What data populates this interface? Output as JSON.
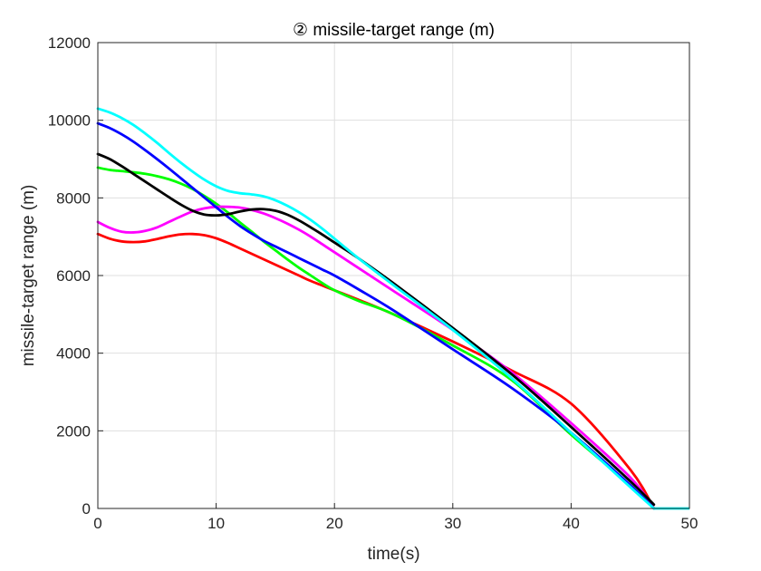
{
  "chart_data": {
    "type": "line",
    "title": "② missile-target range (m)",
    "xlabel": "time(s)",
    "ylabel": "missile-target range (m)",
    "xlim": [
      0,
      50
    ],
    "ylim": [
      0,
      12000
    ],
    "xticks": [
      0,
      10,
      20,
      30,
      40,
      50
    ],
    "yticks": [
      0,
      2000,
      4000,
      6000,
      8000,
      10000,
      12000
    ],
    "grid": true,
    "series": [
      {
        "name": "red",
        "color": "#ff0000",
        "x": [
          0,
          1,
          2,
          3,
          4,
          5,
          6,
          7,
          8,
          9,
          10,
          11,
          12,
          13,
          14,
          15,
          16,
          17,
          18,
          20,
          22,
          25,
          30,
          35,
          40,
          45,
          47
        ],
        "y": [
          7070,
          6950,
          6880,
          6860,
          6880,
          6940,
          7010,
          7060,
          7070,
          7040,
          6960,
          6840,
          6700,
          6560,
          6420,
          6280,
          6140,
          6000,
          5860,
          5620,
          5380,
          5000,
          4300,
          3550,
          2700,
          1000,
          0
        ]
      },
      {
        "name": "green",
        "color": "#00ff00",
        "x": [
          0,
          1,
          2,
          3,
          4,
          5,
          6,
          7,
          8,
          9,
          10,
          11,
          12,
          13,
          14,
          15,
          16,
          17,
          18,
          19,
          20,
          22,
          25,
          30,
          35,
          40,
          45,
          47
        ],
        "y": [
          8780,
          8720,
          8690,
          8660,
          8620,
          8560,
          8480,
          8370,
          8230,
          8050,
          7850,
          7620,
          7370,
          7130,
          6880,
          6650,
          6420,
          6200,
          6000,
          5800,
          5620,
          5350,
          5000,
          4200,
          3300,
          1900,
          600,
          0
        ]
      },
      {
        "name": "magenta",
        "color": "#ff00ff",
        "x": [
          0,
          1,
          2,
          3,
          4,
          5,
          6,
          7,
          8,
          9,
          10,
          11,
          12,
          13,
          14,
          15,
          16,
          17,
          18,
          19,
          20,
          22,
          25,
          30,
          35,
          40,
          45,
          47
        ],
        "y": [
          7380,
          7230,
          7130,
          7110,
          7150,
          7240,
          7380,
          7520,
          7650,
          7730,
          7770,
          7770,
          7750,
          7690,
          7600,
          7480,
          7340,
          7180,
          7000,
          6800,
          6600,
          6200,
          5600,
          4600,
          3500,
          2200,
          800,
          0
        ]
      },
      {
        "name": "blue",
        "color": "#0000ff",
        "x": [
          0,
          1,
          2,
          3,
          4,
          5,
          6,
          7,
          8,
          9,
          10,
          11,
          12,
          13,
          14,
          15,
          16,
          17,
          18,
          19,
          20,
          22,
          25,
          30,
          35,
          40,
          45,
          47
        ],
        "y": [
          9920,
          9800,
          9640,
          9450,
          9230,
          9000,
          8760,
          8510,
          8260,
          8010,
          7760,
          7510,
          7280,
          7080,
          6900,
          6750,
          6600,
          6450,
          6300,
          6150,
          6000,
          5650,
          5100,
          4100,
          3100,
          1950,
          600,
          0
        ]
      },
      {
        "name": "black",
        "color": "#000000",
        "x": [
          0,
          1,
          2,
          3,
          4,
          5,
          6,
          7,
          8,
          9,
          10,
          11,
          12,
          13,
          14,
          15,
          16,
          17,
          18,
          19,
          20,
          22,
          25,
          30,
          35,
          40,
          45,
          47
        ],
        "y": [
          9130,
          9000,
          8820,
          8620,
          8420,
          8220,
          8020,
          7830,
          7670,
          7570,
          7550,
          7580,
          7650,
          7700,
          7710,
          7670,
          7570,
          7420,
          7240,
          7050,
          6850,
          6450,
          5800,
          4650,
          3450,
          2100,
          700,
          100
        ]
      },
      {
        "name": "cyan",
        "color": "#00ffff",
        "x": [
          0,
          1,
          2,
          3,
          4,
          5,
          6,
          7,
          8,
          9,
          10,
          11,
          12,
          13,
          14,
          15,
          16,
          17,
          18,
          19,
          20,
          22,
          25,
          30,
          35,
          40,
          45,
          47
        ],
        "y": [
          10300,
          10200,
          10060,
          9880,
          9660,
          9420,
          9160,
          8910,
          8680,
          8470,
          8300,
          8180,
          8120,
          8090,
          8040,
          7940,
          7800,
          7630,
          7430,
          7200,
          6950,
          6450,
          5750,
          4600,
          3350,
          1950,
          550,
          0
        ]
      }
    ],
    "zero_segment": {
      "color": "#00ffff",
      "x": [
        47,
        50
      ],
      "y": [
        0,
        0
      ]
    }
  }
}
